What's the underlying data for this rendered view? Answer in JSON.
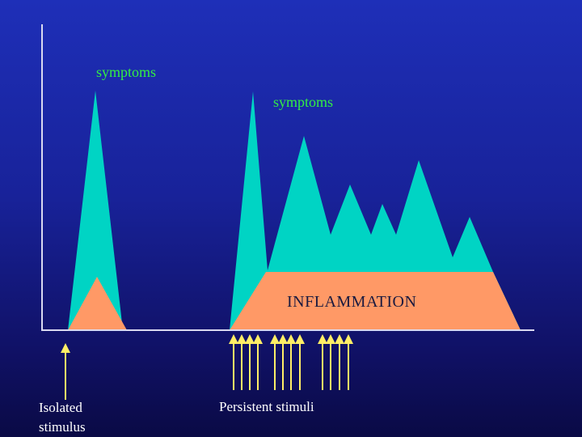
{
  "labels": {
    "symptoms_1": "symptoms",
    "symptoms_2": "symptoms",
    "inflammation": "INFLAMMATION",
    "isolated_stimulus_line1": "Isolated",
    "isolated_stimulus_line2": "stimulus",
    "persistent_stimuli": "Persistent stimuli"
  },
  "colors": {
    "background_top": "#1e2fb8",
    "background_bottom": "#0a0a45",
    "symptoms_fill": "#00d4c4",
    "inflammation_fill": "#ff9966",
    "symptom_label": "#33ee44",
    "stimulus_arrow": "#ffee66",
    "axis": "#d9d9f0",
    "text": "#ffffff"
  }
}
